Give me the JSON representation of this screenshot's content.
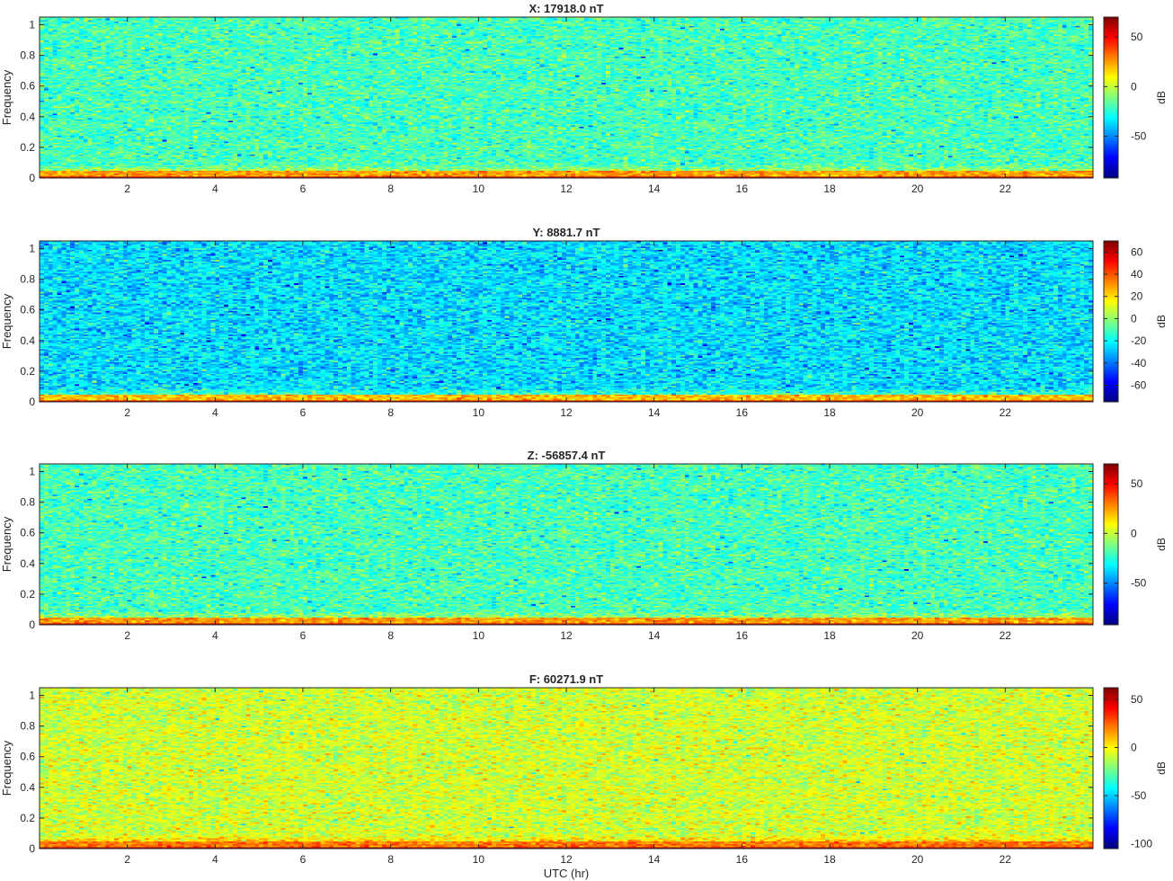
{
  "chart_data": [
    {
      "type": "heatmap",
      "title": "X: 17918.0 nT",
      "xlabel": "",
      "ylabel": "Frequency",
      "xlim": [
        0,
        24
      ],
      "ylim": [
        0,
        1.05
      ],
      "x_ticks": [
        2,
        4,
        6,
        8,
        10,
        12,
        14,
        16,
        18,
        20,
        22
      ],
      "y_ticks": [
        0,
        0.2,
        0.4,
        0.6,
        0.8,
        1
      ],
      "colorbar": {
        "label": "dB",
        "range": [
          -92,
          70
        ],
        "ticks": [
          -50,
          0,
          50
        ]
      },
      "colormap": "jet",
      "background_level_db": -20,
      "low_frequency_band_level_db": 60,
      "near_zero_band_level_db": 25
    },
    {
      "type": "heatmap",
      "title": "Y: 8881.7 nT",
      "xlabel": "",
      "ylabel": "Frequency",
      "xlim": [
        0,
        24
      ],
      "ylim": [
        0,
        1.05
      ],
      "x_ticks": [
        2,
        4,
        6,
        8,
        10,
        12,
        14,
        16,
        18,
        20,
        22
      ],
      "y_ticks": [
        0,
        0.2,
        0.4,
        0.6,
        0.8,
        1
      ],
      "colorbar": {
        "label": "dB",
        "range": [
          -75,
          70
        ],
        "ticks": [
          -60,
          -40,
          -20,
          0,
          20,
          40,
          60
        ]
      },
      "colormap": "jet",
      "background_level_db": -25,
      "low_frequency_band_level_db": 60,
      "near_zero_band_level_db": 25
    },
    {
      "type": "heatmap",
      "title": "Z: -56857.4 nT",
      "xlabel": "",
      "ylabel": "Frequency",
      "xlim": [
        0,
        24
      ],
      "ylim": [
        0,
        1.05
      ],
      "x_ticks": [
        2,
        4,
        6,
        8,
        10,
        12,
        14,
        16,
        18,
        20,
        22
      ],
      "y_ticks": [
        0,
        0.2,
        0.4,
        0.6,
        0.8,
        1
      ],
      "colorbar": {
        "label": "dB",
        "range": [
          -92,
          70
        ],
        "ticks": [
          -50,
          0,
          50
        ]
      },
      "colormap": "jet",
      "background_level_db": -20,
      "low_frequency_band_level_db": 60,
      "near_zero_band_level_db": 25
    },
    {
      "type": "heatmap",
      "title": "F: 60271.9 nT",
      "xlabel": "UTC (hr)",
      "ylabel": "Frequency",
      "xlim": [
        0,
        24
      ],
      "ylim": [
        0,
        1.05
      ],
      "x_ticks": [
        2,
        4,
        6,
        8,
        10,
        12,
        14,
        16,
        18,
        20,
        22
      ],
      "y_ticks": [
        0,
        0.2,
        0.4,
        0.6,
        0.8,
        1
      ],
      "colorbar": {
        "label": "dB",
        "range": [
          -105,
          62
        ],
        "ticks": [
          -100,
          -50,
          0,
          50
        ]
      },
      "colormap": "jet",
      "background_level_db": -8,
      "low_frequency_band_level_db": 55,
      "near_zero_band_level_db": 22
    }
  ]
}
